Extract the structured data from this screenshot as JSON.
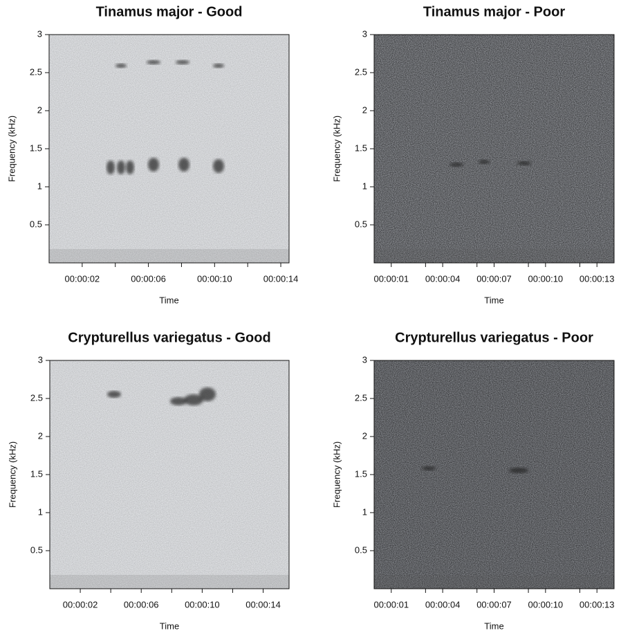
{
  "chart_data": [
    {
      "type": "spectrogram",
      "title": "Tinamus major - Good",
      "xlabel": "Time",
      "ylabel": "Frequency (kHz)",
      "xlim": [
        0,
        14.5
      ],
      "ylim": [
        0,
        3
      ],
      "xticks": [
        {
          "value": 2,
          "label": "00:00:02"
        },
        {
          "value": 6,
          "label": "00:00:06"
        },
        {
          "value": 10,
          "label": "00:00:10"
        },
        {
          "value": 14,
          "label": "00:00:14"
        }
      ],
      "xminor": [
        4,
        8,
        12
      ],
      "yticks": [
        0.5,
        1,
        1.5,
        2,
        2.5,
        3
      ]
    },
    {
      "type": "spectrogram",
      "title": "Tinamus major - Poor",
      "xlabel": "Time",
      "ylabel": "Frequency (kHz)",
      "xlim": [
        0,
        14
      ],
      "ylim": [
        0,
        3
      ],
      "xticks": [
        {
          "value": 1,
          "label": "00:00:01"
        },
        {
          "value": 4,
          "label": "00:00:04"
        },
        {
          "value": 7,
          "label": "00:00:07"
        },
        {
          "value": 10,
          "label": "00:00:10"
        },
        {
          "value": 13,
          "label": "00:00:13"
        }
      ],
      "xminor": [
        3,
        6,
        9,
        12
      ],
      "yticks": [
        0.5,
        1,
        1.5,
        2,
        2.5,
        3
      ]
    },
    {
      "type": "spectrogram",
      "title": "Crypturellus variegatus - Good",
      "xlabel": "Time",
      "ylabel": "Frequency (kHz)",
      "xlim": [
        0,
        15.7
      ],
      "ylim": [
        0,
        3
      ],
      "xticks": [
        {
          "value": 2,
          "label": "00:00:02"
        },
        {
          "value": 6,
          "label": "00:00:06"
        },
        {
          "value": 10,
          "label": "00:00:10"
        },
        {
          "value": 14,
          "label": "00:00:14"
        }
      ],
      "xminor": [
        4,
        8,
        12
      ],
      "yticks": [
        0.5,
        1,
        1.5,
        2,
        2.5,
        3
      ]
    },
    {
      "type": "spectrogram",
      "title": "Crypturellus variegatus - Poor",
      "xlabel": "Time",
      "ylabel": "Frequency (kHz)",
      "xlim": [
        0,
        14
      ],
      "ylim": [
        0,
        3
      ],
      "xticks": [
        {
          "value": 1,
          "label": "00:00:01"
        },
        {
          "value": 4,
          "label": "00:00:04"
        },
        {
          "value": 7,
          "label": "00:00:07"
        },
        {
          "value": 10,
          "label": "00:00:10"
        },
        {
          "value": 13,
          "label": "00:00:13"
        }
      ],
      "xminor": [
        3,
        6,
        9,
        12
      ],
      "yticks": [
        0.5,
        1,
        1.5,
        2,
        2.5,
        3
      ]
    }
  ]
}
